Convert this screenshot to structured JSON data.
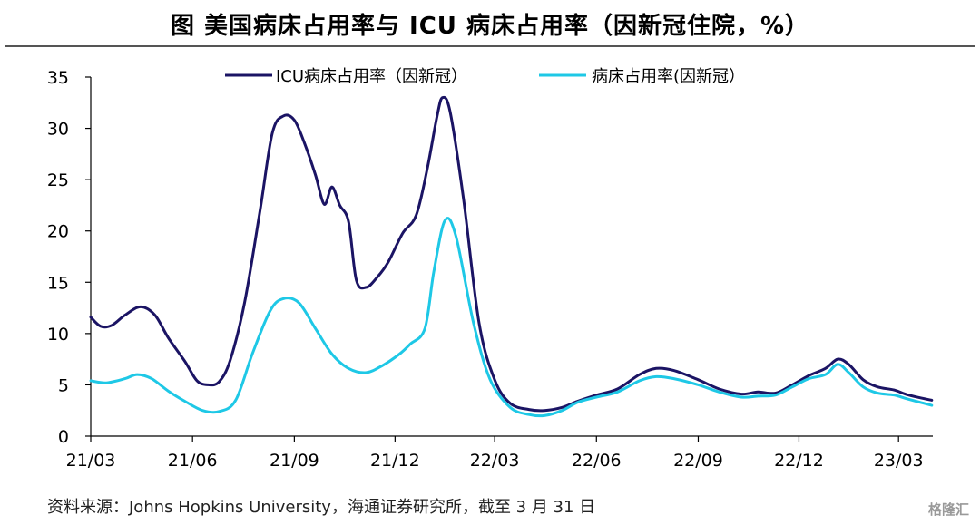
{
  "title": "图  美国病床占用率与 ICU 病床占用率（因新冠住院，%）",
  "source": "资料来源：Johns Hopkins University，海通证券研究所，截至 3 月 31 日",
  "watermark": "格隆汇",
  "chart_data": {
    "type": "line",
    "title": "图  美国病床占用率与 ICU 病床占用率（因新冠住院，%）",
    "xlabel": "",
    "ylabel": "",
    "ylim": [
      0,
      35
    ],
    "yticks": [
      0,
      5,
      10,
      15,
      20,
      25,
      30,
      35
    ],
    "xlim": [
      "2021-03-01",
      "2023-04-01"
    ],
    "xticks": [
      "2021-03-01",
      "2021-06-01",
      "2021-09-01",
      "2021-12-01",
      "2022-03-01",
      "2022-06-01",
      "2022-09-01",
      "2022-12-01",
      "2023-03-01"
    ],
    "xtick_labels": [
      "21/03",
      "21/06",
      "21/09",
      "21/12",
      "22/03",
      "22/06",
      "22/09",
      "22/12",
      "23/03"
    ],
    "grid": false,
    "legend_position": "top-center",
    "series": [
      {
        "name": "ICU病床占用率（因新冠）",
        "color": "#1b1464",
        "points": [
          [
            "2021-03-01",
            11.6
          ],
          [
            "2021-03-10",
            10.7
          ],
          [
            "2021-03-20",
            10.8
          ],
          [
            "2021-04-01",
            11.8
          ],
          [
            "2021-04-15",
            12.6
          ],
          [
            "2021-04-28",
            11.8
          ],
          [
            "2021-05-10",
            9.6
          ],
          [
            "2021-05-25",
            7.3
          ],
          [
            "2021-06-05",
            5.4
          ],
          [
            "2021-06-15",
            5.0
          ],
          [
            "2021-06-25",
            5.3
          ],
          [
            "2021-07-05",
            7.4
          ],
          [
            "2021-07-18",
            13.0
          ],
          [
            "2021-08-01",
            22.0
          ],
          [
            "2021-08-12",
            29.5
          ],
          [
            "2021-08-22",
            31.2
          ],
          [
            "2021-09-01",
            30.8
          ],
          [
            "2021-09-10",
            28.6
          ],
          [
            "2021-09-20",
            25.5
          ],
          [
            "2021-09-28",
            22.6
          ],
          [
            "2021-10-05",
            24.3
          ],
          [
            "2021-10-12",
            22.5
          ],
          [
            "2021-10-20",
            20.9
          ],
          [
            "2021-10-27",
            15.2
          ],
          [
            "2021-11-05",
            14.5
          ],
          [
            "2021-11-15",
            15.5
          ],
          [
            "2021-11-25",
            17.0
          ],
          [
            "2021-12-08",
            19.8
          ],
          [
            "2021-12-20",
            21.5
          ],
          [
            "2021-12-30",
            26.0
          ],
          [
            "2022-01-08",
            31.2
          ],
          [
            "2022-01-13",
            33.0
          ],
          [
            "2022-01-20",
            31.5
          ],
          [
            "2022-02-01",
            23.0
          ],
          [
            "2022-02-15",
            11.0
          ],
          [
            "2022-03-01",
            5.5
          ],
          [
            "2022-03-15",
            3.2
          ],
          [
            "2022-04-01",
            2.6
          ],
          [
            "2022-04-15",
            2.5
          ],
          [
            "2022-05-01",
            2.8
          ],
          [
            "2022-05-15",
            3.4
          ],
          [
            "2022-06-01",
            4.0
          ],
          [
            "2022-06-20",
            4.6
          ],
          [
            "2022-07-10",
            6.0
          ],
          [
            "2022-07-25",
            6.6
          ],
          [
            "2022-08-10",
            6.4
          ],
          [
            "2022-09-01",
            5.5
          ],
          [
            "2022-09-20",
            4.6
          ],
          [
            "2022-10-10",
            4.1
          ],
          [
            "2022-10-25",
            4.3
          ],
          [
            "2022-11-10",
            4.2
          ],
          [
            "2022-11-25",
            5.0
          ],
          [
            "2022-12-10",
            5.9
          ],
          [
            "2022-12-25",
            6.6
          ],
          [
            "2023-01-05",
            7.5
          ],
          [
            "2023-01-15",
            7.0
          ],
          [
            "2023-01-28",
            5.5
          ],
          [
            "2023-02-10",
            4.8
          ],
          [
            "2023-02-25",
            4.5
          ],
          [
            "2023-03-10",
            4.0
          ],
          [
            "2023-03-31",
            3.5
          ]
        ]
      },
      {
        "name": "病床占用率(因新冠）",
        "color": "#1ec8e6",
        "points": [
          [
            "2021-03-01",
            5.4
          ],
          [
            "2021-03-15",
            5.2
          ],
          [
            "2021-04-01",
            5.6
          ],
          [
            "2021-04-12",
            6.0
          ],
          [
            "2021-04-25",
            5.6
          ],
          [
            "2021-05-10",
            4.4
          ],
          [
            "2021-05-25",
            3.4
          ],
          [
            "2021-06-10",
            2.5
          ],
          [
            "2021-06-25",
            2.4
          ],
          [
            "2021-07-10",
            3.5
          ],
          [
            "2021-07-25",
            8.0
          ],
          [
            "2021-08-10",
            12.2
          ],
          [
            "2021-08-22",
            13.4
          ],
          [
            "2021-09-05",
            13.0
          ],
          [
            "2021-09-20",
            10.5
          ],
          [
            "2021-10-05",
            8.0
          ],
          [
            "2021-10-20",
            6.6
          ],
          [
            "2021-11-05",
            6.2
          ],
          [
            "2021-11-20",
            6.9
          ],
          [
            "2021-12-05",
            8.0
          ],
          [
            "2021-12-15",
            9.0
          ],
          [
            "2021-12-28",
            10.5
          ],
          [
            "2022-01-05",
            16.0
          ],
          [
            "2022-01-15",
            21.0
          ],
          [
            "2022-01-25",
            19.5
          ],
          [
            "2022-02-10",
            11.0
          ],
          [
            "2022-02-25",
            5.5
          ],
          [
            "2022-03-15",
            2.8
          ],
          [
            "2022-04-01",
            2.1
          ],
          [
            "2022-04-15",
            2.0
          ],
          [
            "2022-05-01",
            2.5
          ],
          [
            "2022-05-15",
            3.3
          ],
          [
            "2022-06-01",
            3.8
          ],
          [
            "2022-06-20",
            4.3
          ],
          [
            "2022-07-10",
            5.4
          ],
          [
            "2022-07-25",
            5.8
          ],
          [
            "2022-08-10",
            5.6
          ],
          [
            "2022-09-01",
            5.0
          ],
          [
            "2022-09-20",
            4.3
          ],
          [
            "2022-10-10",
            3.8
          ],
          [
            "2022-10-25",
            3.9
          ],
          [
            "2022-11-10",
            4.0
          ],
          [
            "2022-11-25",
            4.8
          ],
          [
            "2022-12-10",
            5.6
          ],
          [
            "2022-12-25",
            6.0
          ],
          [
            "2023-01-05",
            7.0
          ],
          [
            "2023-01-15",
            6.2
          ],
          [
            "2023-01-28",
            4.8
          ],
          [
            "2023-02-10",
            4.2
          ],
          [
            "2023-02-25",
            4.0
          ],
          [
            "2023-03-10",
            3.6
          ],
          [
            "2023-03-31",
            3.0
          ]
        ]
      }
    ]
  }
}
